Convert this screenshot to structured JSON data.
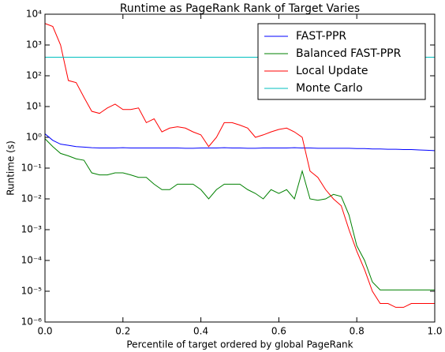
{
  "chart_data": {
    "type": "line",
    "title": "Runtime as PageRank Rank of Target Varies",
    "xlabel": "Percentile of target ordered by global PageRank",
    "ylabel": "Runtime  (s)",
    "x": [
      0,
      0.02,
      0.04,
      0.06,
      0.08,
      0.1,
      0.12,
      0.14,
      0.16,
      0.18,
      0.2,
      0.22,
      0.24,
      0.26,
      0.28,
      0.3,
      0.32,
      0.34,
      0.36,
      0.38,
      0.4,
      0.42,
      0.44,
      0.46,
      0.48,
      0.5,
      0.52,
      0.54,
      0.56,
      0.58,
      0.6,
      0.62,
      0.64,
      0.66,
      0.68,
      0.7,
      0.72,
      0.74,
      0.76,
      0.78,
      0.8,
      0.82,
      0.84,
      0.86,
      0.88,
      0.9,
      0.92,
      0.94,
      0.96,
      0.98,
      1
    ],
    "series": [
      {
        "name": "FAST-PPR",
        "color": "#0000ff",
        "values": [
          1.3,
          0.8,
          0.6,
          0.55,
          0.5,
          0.48,
          0.46,
          0.45,
          0.45,
          0.45,
          0.46,
          0.45,
          0.45,
          0.45,
          0.45,
          0.45,
          0.45,
          0.45,
          0.44,
          0.44,
          0.45,
          0.45,
          0.45,
          0.46,
          0.45,
          0.45,
          0.44,
          0.44,
          0.45,
          0.45,
          0.45,
          0.45,
          0.46,
          0.45,
          0.45,
          0.44,
          0.44,
          0.44,
          0.44,
          0.44,
          0.43,
          0.43,
          0.42,
          0.42,
          0.41,
          0.41,
          0.4,
          0.4,
          0.39,
          0.38,
          0.37
        ]
      },
      {
        "name": "Balanced FAST-PPR",
        "color": "#008000",
        "values": [
          0.9,
          0.5,
          0.3,
          0.25,
          0.2,
          0.18,
          0.07,
          0.06,
          0.06,
          0.07,
          0.07,
          0.06,
          0.05,
          0.05,
          0.03,
          0.02,
          0.02,
          0.03,
          0.03,
          0.03,
          0.02,
          0.01,
          0.02,
          0.03,
          0.03,
          0.03,
          0.02,
          0.015,
          0.01,
          0.02,
          0.015,
          0.02,
          0.01,
          0.08,
          0.01,
          0.009,
          0.01,
          0.014,
          0.012,
          0.003,
          0.0003,
          0.0001,
          2e-05,
          1.1e-05,
          1.1e-05,
          1.1e-05,
          1.1e-05,
          1.1e-05,
          1.1e-05,
          1.1e-05,
          1.1e-05
        ]
      },
      {
        "name": "Local Update",
        "color": "#ff0000",
        "values": [
          5000,
          4000,
          1000,
          70,
          60,
          20,
          7,
          6,
          9,
          12,
          8,
          8,
          9,
          3,
          4,
          1.5,
          2,
          2.2,
          2,
          1.5,
          1.2,
          0.5,
          1,
          3,
          3,
          2.5,
          2,
          1,
          1.2,
          1.5,
          1.8,
          2,
          1.5,
          1,
          0.08,
          0.05,
          0.02,
          0.01,
          0.006,
          0.001,
          0.0002,
          5e-05,
          1e-05,
          4e-06,
          4e-06,
          3e-06,
          3e-06,
          4e-06,
          4e-06,
          4e-06,
          4e-06
        ]
      },
      {
        "name": "Monte Carlo",
        "color": "#00bfbf",
        "values": [
          400,
          400,
          400,
          400,
          400,
          400,
          400,
          400,
          400,
          400,
          400,
          400,
          400,
          400,
          400,
          400,
          400,
          400,
          400,
          400,
          400,
          400,
          400,
          400,
          400,
          400,
          400,
          400,
          400,
          400,
          400,
          400,
          400,
          400,
          400,
          400,
          400,
          400,
          400,
          400,
          400,
          400,
          400,
          400,
          400,
          400,
          400,
          400,
          400,
          400,
          400
        ]
      }
    ],
    "xlim": [
      0,
      1
    ],
    "xticks": [
      {
        "value": 0,
        "label": "0.0"
      },
      0.2,
      0.4,
      0.6,
      0.8,
      {
        "value": 1,
        "label": "1.0"
      }
    ],
    "ylim": [
      1e-06,
      10000
    ],
    "yticks": [
      {
        "value": 1e-06,
        "label": "10⁻⁶"
      },
      {
        "value": 1e-05,
        "label": "10⁻⁵"
      },
      {
        "value": 0.0001,
        "label": "10⁻⁴"
      },
      {
        "value": 0.001,
        "label": "10⁻³"
      },
      {
        "value": 0.01,
        "label": "10⁻²"
      },
      {
        "value": 0.1,
        "label": "10⁻¹"
      },
      {
        "value": 1,
        "label": "10⁰"
      },
      {
        "value": 10,
        "label": "10¹"
      },
      {
        "value": 100,
        "label": "10²"
      },
      {
        "value": 1000,
        "label": "10³"
      },
      {
        "value": 10000,
        "label": "10⁴"
      }
    ],
    "ylog": true,
    "legend": "upper right"
  }
}
